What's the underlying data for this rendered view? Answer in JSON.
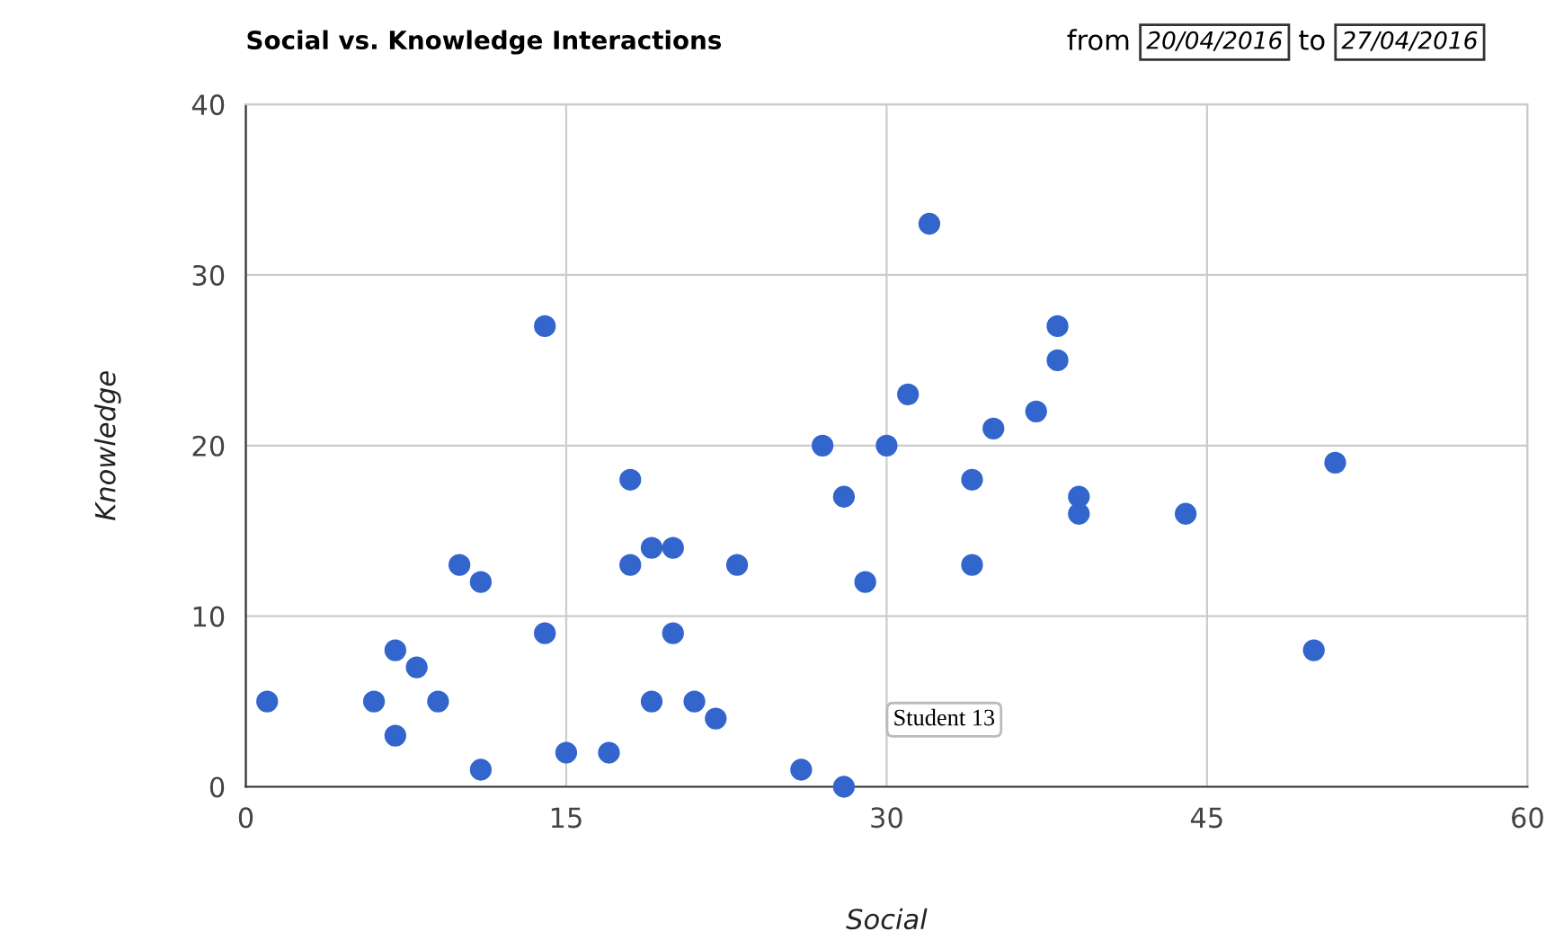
{
  "chart_data": {
    "type": "scatter",
    "title": "Social vs. Knowledge Interactions",
    "xlabel": "Social",
    "ylabel": "Knowledge",
    "x": [
      1,
      6,
      7,
      7,
      8,
      9,
      10,
      11,
      11,
      14,
      14,
      15,
      17,
      18,
      18,
      19,
      19,
      20,
      20,
      21,
      22,
      23,
      26,
      27,
      28,
      28,
      29,
      30,
      31,
      32,
      34,
      34,
      35,
      37,
      38,
      38,
      39,
      39,
      44,
      50,
      51
    ],
    "series": [
      {
        "color": "#3366cc",
        "values": [
          5,
          5,
          8,
          3,
          7,
          5,
          13,
          12,
          1,
          27,
          9,
          2,
          2,
          18,
          13,
          14,
          5,
          14,
          9,
          5,
          4,
          13,
          1,
          20,
          17,
          0,
          12,
          20,
          23,
          33,
          18,
          13,
          21,
          22,
          27,
          25,
          17,
          16,
          16,
          8,
          19
        ]
      }
    ],
    "xlim": [
      0,
      60
    ],
    "xticks": [
      0,
      15,
      30,
      45,
      60
    ],
    "ylim": [
      0,
      40
    ],
    "yticks": [
      0,
      10,
      20,
      30,
      40
    ],
    "grid": true,
    "marker": "circle",
    "legend": false,
    "annotations": [
      "Student 13",
      "from",
      "20/04/2016",
      "to",
      "27/04/2016"
    ]
  }
}
